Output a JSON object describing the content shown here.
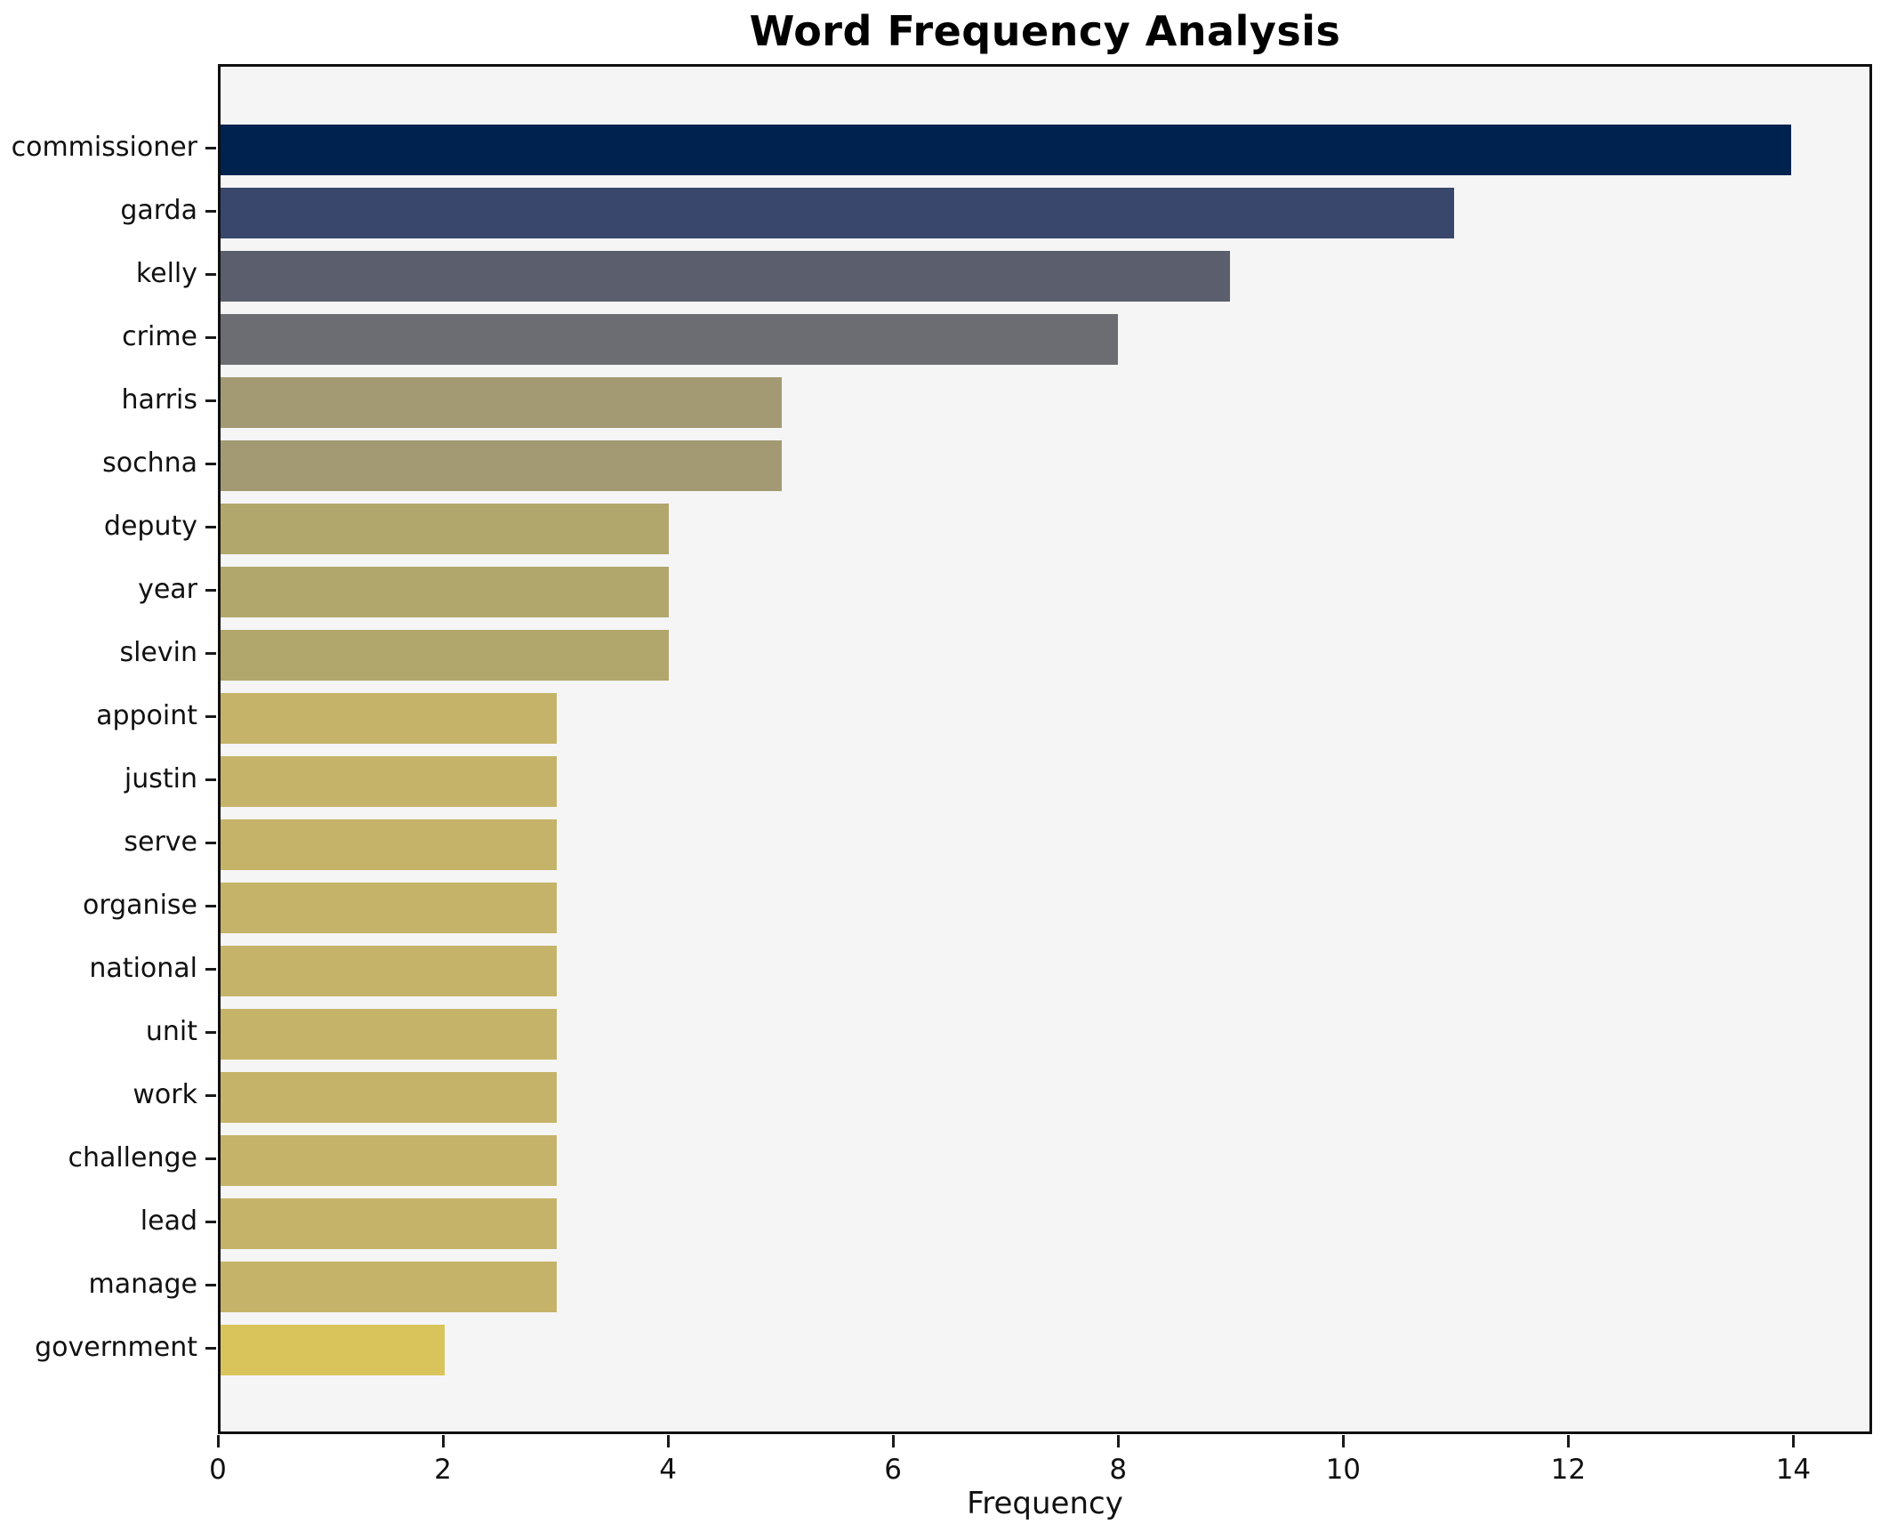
{
  "title": "Word Frequency Analysis",
  "chart_data": {
    "type": "bar",
    "orientation": "horizontal",
    "title": "Word Frequency Analysis",
    "xlabel": "Frequency",
    "ylabel": "",
    "xlim": [
      0,
      14.7
    ],
    "x_ticks": [
      0,
      2,
      4,
      6,
      8,
      10,
      12,
      14
    ],
    "grid": false,
    "legend": false,
    "plot_background": "#f5f5f6",
    "spine_color": "#0f0f0f",
    "categories": [
      "commissioner",
      "garda",
      "kelly",
      "crime",
      "harris",
      "sochna",
      "deputy",
      "year",
      "slevin",
      "appoint",
      "justin",
      "serve",
      "organise",
      "national",
      "unit",
      "work",
      "challenge",
      "lead",
      "manage",
      "government"
    ],
    "values": [
      14,
      11,
      9,
      8,
      5,
      5,
      4,
      4,
      4,
      3,
      3,
      3,
      3,
      3,
      3,
      3,
      3,
      3,
      3,
      2
    ],
    "bar_colors": [
      "#00224e",
      "#39476c",
      "#5b5f6d",
      "#6c6d72",
      "#a39a74",
      "#a39a74",
      "#b1a76d",
      "#b1a76d",
      "#b1a76d",
      "#c5b369",
      "#c5b369",
      "#c5b369",
      "#c5b369",
      "#c5b369",
      "#c5b369",
      "#c5b369",
      "#c5b369",
      "#c5b369",
      "#c5b369",
      "#d9c45c"
    ],
    "colormap": "cividis"
  }
}
